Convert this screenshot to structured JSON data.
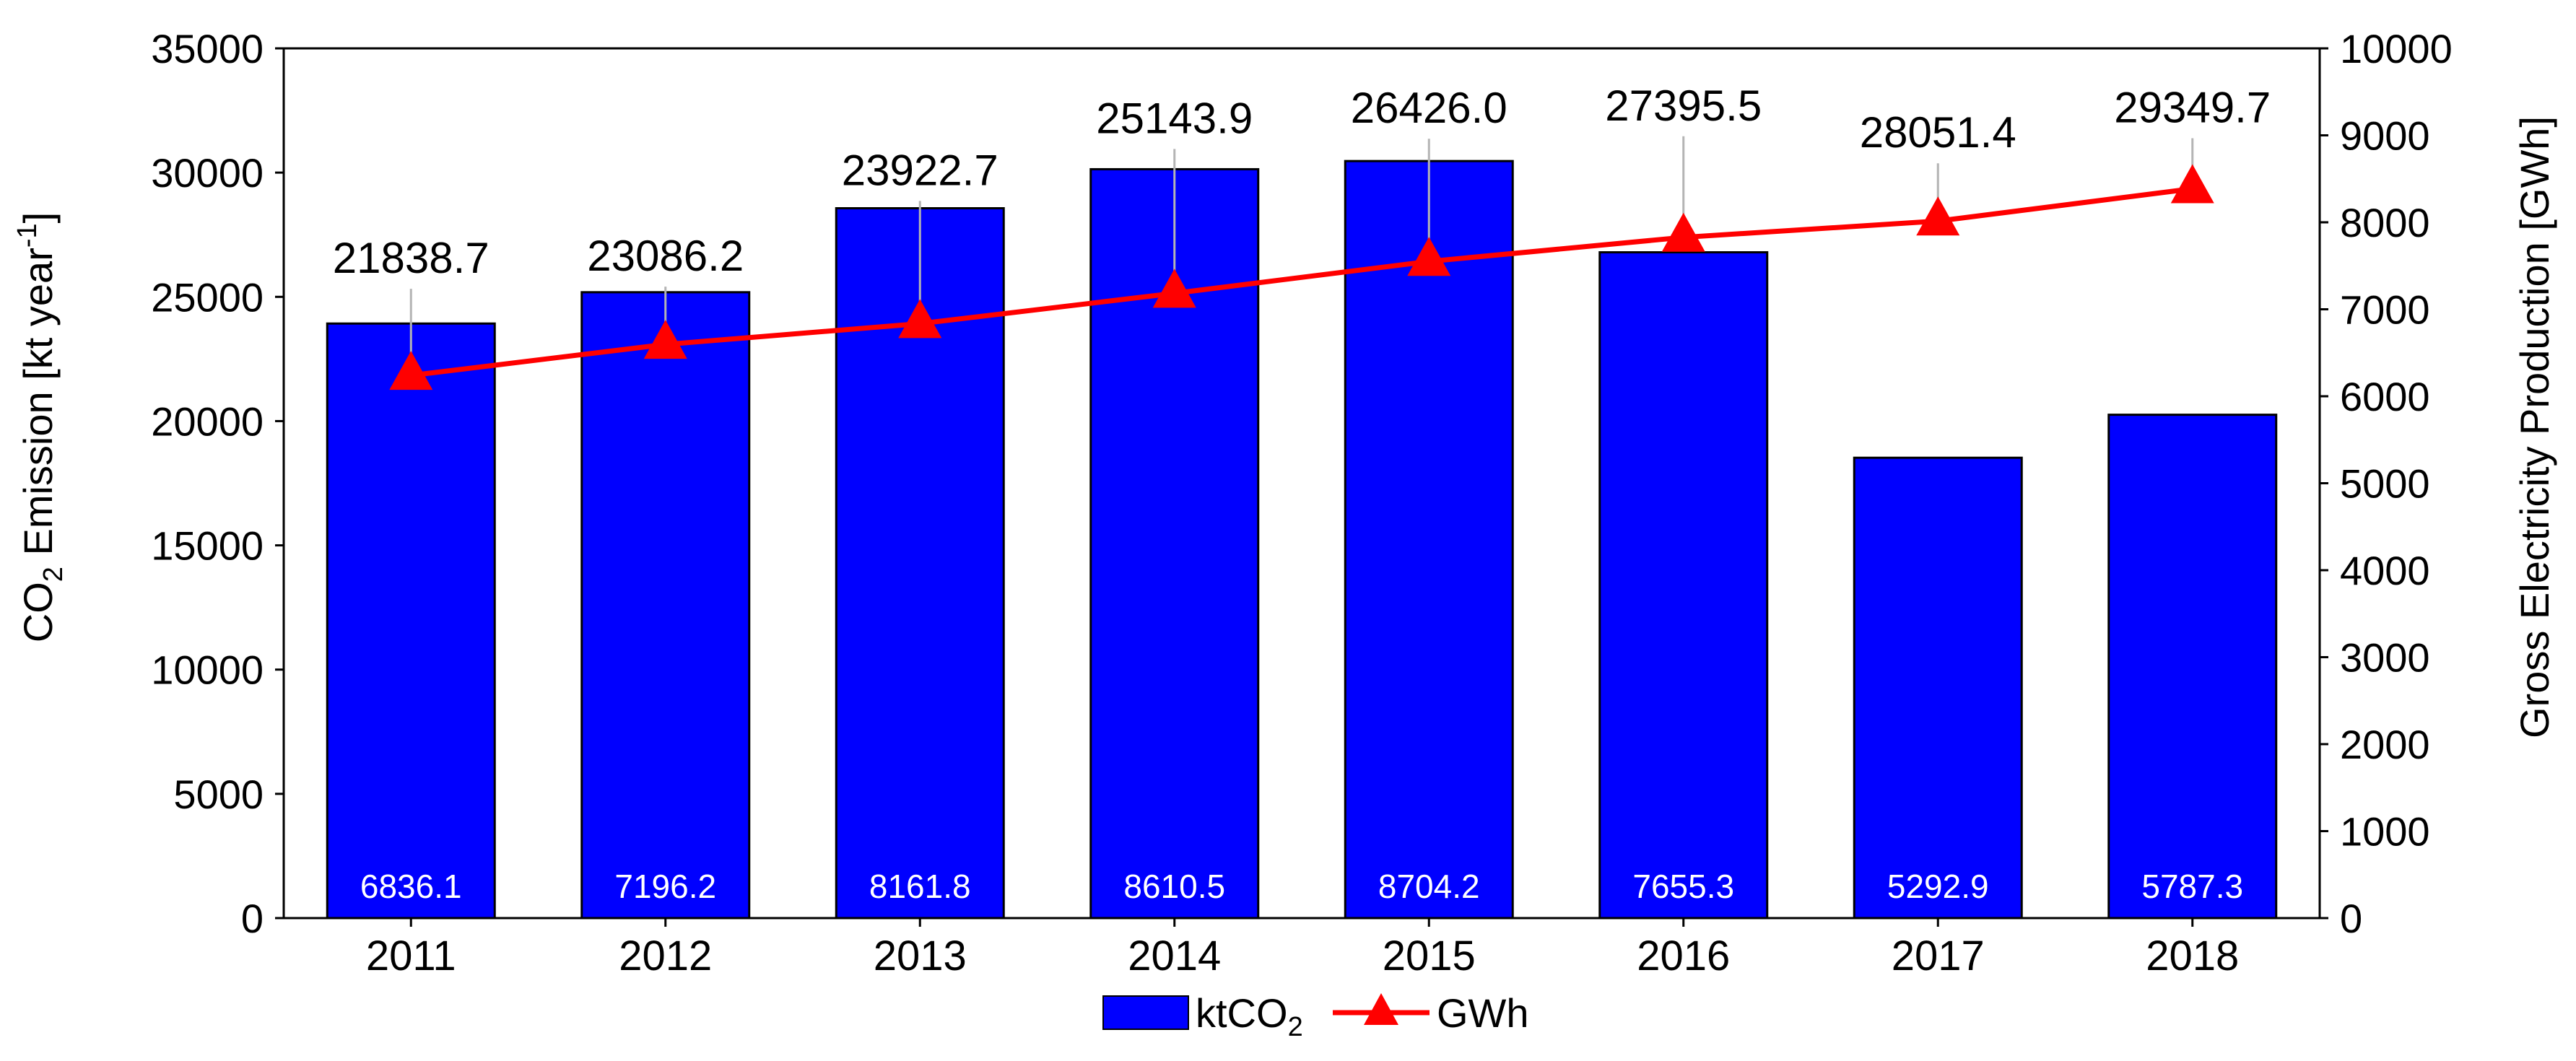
{
  "chart_data": {
    "type": "bar",
    "categories": [
      "2011",
      "2012",
      "2013",
      "2014",
      "2015",
      "2016",
      "2017",
      "2018"
    ],
    "series": [
      {
        "name": "ktCO2",
        "type": "bar",
        "axis": "left",
        "values": [
          6836.1,
          7196.2,
          8161.8,
          8610.5,
          8704.2,
          7655.3,
          5292.9,
          5787.3
        ],
        "value_labels": [
          "6836.1",
          "7196.2",
          "8161.8",
          "8610.5",
          "8704.2",
          "7655.3",
          "5292.9",
          "5787.3"
        ],
        "plotted_on": "right",
        "color": "#0000ff"
      },
      {
        "name": "GWh",
        "type": "line",
        "marker": "triangle",
        "axis": "right",
        "values": [
          21838.7,
          23086.2,
          23922.7,
          25143.9,
          26426.0,
          27395.5,
          28051.4,
          29349.7
        ],
        "value_labels": [
          "21838.7",
          "23086.2",
          "23922.7",
          "25143.9",
          "26426.0",
          "27395.5",
          "28051.4",
          "29349.7"
        ],
        "plotted_on": "left",
        "color": "#ff0000"
      }
    ],
    "y_left": {
      "label_main": "CO",
      "label_sub": "2",
      "label_mid": " Emission [kt year",
      "label_sup": "-1",
      "label_end": "]",
      "ylim": [
        0,
        35000
      ],
      "ticks": [
        0,
        5000,
        10000,
        15000,
        20000,
        25000,
        30000,
        35000
      ]
    },
    "y_right": {
      "label": "Gross Electricity Production [GWh]",
      "ylim": [
        0,
        10000
      ],
      "ticks": [
        0,
        1000,
        2000,
        3000,
        4000,
        5000,
        6000,
        7000,
        8000,
        9000,
        10000
      ]
    },
    "legend": {
      "position": "bottom",
      "items": [
        {
          "main": "ktCO",
          "sub": "2",
          "symbol": "bar"
        },
        {
          "main": "GWh",
          "sub": "",
          "symbol": "line-triangle"
        }
      ]
    },
    "error_bars": true,
    "grid": false
  }
}
